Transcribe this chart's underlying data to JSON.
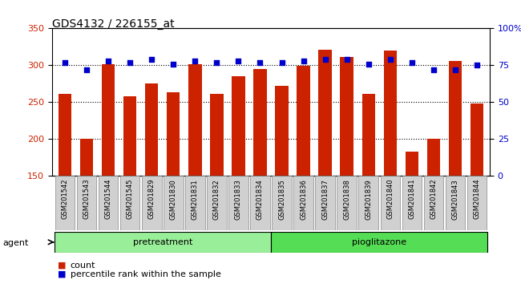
{
  "title": "GDS4132 / 226155_at",
  "categories": [
    "GSM201542",
    "GSM201543",
    "GSM201544",
    "GSM201545",
    "GSM201829",
    "GSM201830",
    "GSM201831",
    "GSM201832",
    "GSM201833",
    "GSM201834",
    "GSM201835",
    "GSM201836",
    "GSM201837",
    "GSM201838",
    "GSM201839",
    "GSM201840",
    "GSM201841",
    "GSM201842",
    "GSM201843",
    "GSM201844"
  ],
  "bar_values": [
    261,
    200,
    301,
    258,
    275,
    263,
    301,
    261,
    285,
    295,
    272,
    299,
    321,
    311,
    261,
    320,
    183,
    200,
    306,
    248
  ],
  "dot_values": [
    77,
    72,
    78,
    77,
    79,
    76,
    78,
    77,
    78,
    77,
    77,
    78,
    79,
    79,
    76,
    79,
    77,
    72,
    72,
    75
  ],
  "bar_color": "#cc2200",
  "dot_color": "#0000cc",
  "ylim_left": [
    150,
    350
  ],
  "ylim_right": [
    0,
    100
  ],
  "yticks_left": [
    150,
    200,
    250,
    300,
    350
  ],
  "yticks_right": [
    0,
    25,
    50,
    75,
    100
  ],
  "ytick_labels_right": [
    "0",
    "25",
    "50",
    "75",
    "100%"
  ],
  "groups": [
    {
      "label": "pretreatment",
      "start": 0,
      "end": 9,
      "color": "#99ee99"
    },
    {
      "label": "pioglitazone",
      "start": 10,
      "end": 19,
      "color": "#55dd55"
    }
  ],
  "agent_label": "agent",
  "legend_bar_label": "count",
  "legend_dot_label": "percentile rank within the sample",
  "background_color": "#ffffff",
  "plot_bg_color": "#ffffff",
  "tick_label_color_left": "#cc2200",
  "tick_label_color_right": "#0000cc",
  "grid_color": "#000000",
  "bar_width": 0.6,
  "xlabel_rotation": 90
}
